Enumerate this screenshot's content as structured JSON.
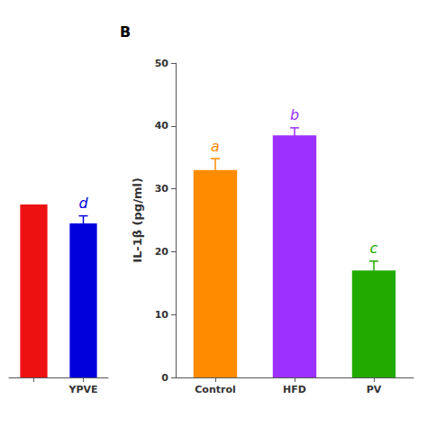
{
  "chart_data": [
    {
      "type": "bar",
      "categories": [
        null,
        "YPVE"
      ],
      "values": [
        27.5,
        24.5
      ],
      "colors": [
        "#EE1111",
        "#0000DD"
      ],
      "errors": [
        null,
        1.2
      ],
      "annotations": [
        null,
        "d"
      ],
      "ylim": [
        0,
        50
      ],
      "tick_labels": "x",
      "grid": false
    },
    {
      "type": "bar",
      "title": "B",
      "ylabel": "IL-1β (pg/ml)",
      "categories": [
        "Control",
        "HFD",
        "PV"
      ],
      "values": [
        33.0,
        38.5,
        17.0
      ],
      "colors": [
        "#FF8C00",
        "#9B30FF",
        "#22AA00"
      ],
      "errors": [
        1.8,
        1.2,
        1.5
      ],
      "annotations": [
        "a",
        "b",
        "c"
      ],
      "ylim": [
        0,
        50
      ],
      "yticks": [
        0,
        10,
        20,
        30,
        40,
        50
      ],
      "grid": false
    }
  ]
}
